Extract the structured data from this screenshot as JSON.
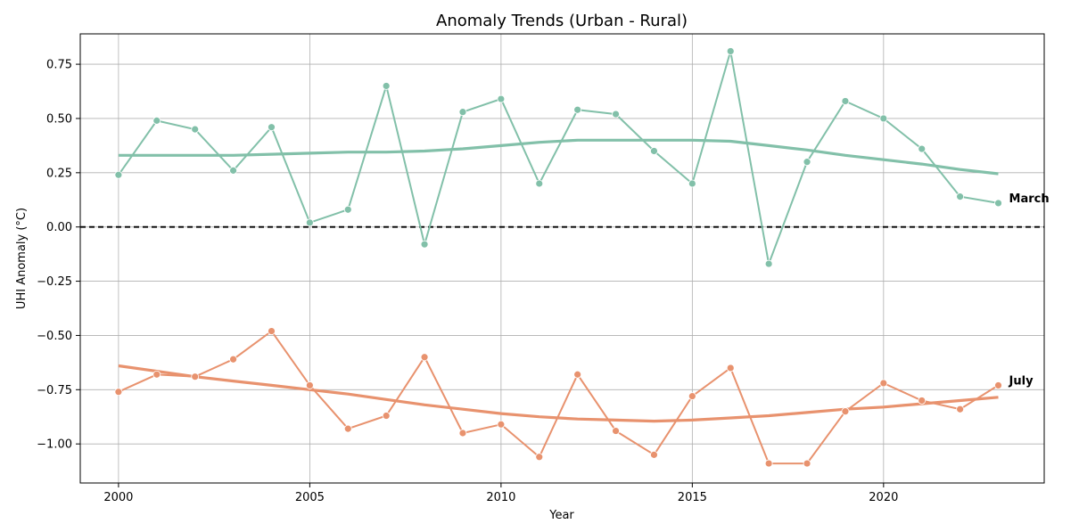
{
  "chart_data": {
    "type": "line",
    "title": "Anomaly Trends (Urban - Rural)",
    "xlabel": "Year",
    "ylabel": "UHI Anomaly (°C)",
    "xlim": [
      1999,
      2024.2
    ],
    "ylim": [
      -1.18,
      0.89
    ],
    "xticks": [
      2000,
      2005,
      2010,
      2015,
      2020
    ],
    "yticks": [
      0.75,
      0.5,
      0.25,
      0.0,
      -0.25,
      -0.5,
      -0.75,
      -1.0
    ],
    "ytick_labels": [
      "0.75",
      "0.50",
      "0.25",
      "0.00",
      "−0.25",
      "−0.50",
      "−0.75",
      "−1.00"
    ],
    "grid": true,
    "reference_line": {
      "y": 0.0,
      "style": "dashed",
      "color": "#000000"
    },
    "x": [
      2000,
      2001,
      2002,
      2003,
      2004,
      2005,
      2006,
      2007,
      2008,
      2009,
      2010,
      2011,
      2012,
      2013,
      2014,
      2015,
      2016,
      2017,
      2018,
      2019,
      2020,
      2021,
      2022,
      2023
    ],
    "series": [
      {
        "name": "March",
        "color": "#82c0a9",
        "values": [
          0.24,
          0.49,
          0.45,
          0.26,
          0.46,
          0.02,
          0.08,
          0.65,
          -0.08,
          0.53,
          0.59,
          0.2,
          0.54,
          0.52,
          0.35,
          0.2,
          0.81,
          -0.17,
          0.3,
          0.58,
          0.5,
          0.36,
          0.14,
          0.11
        ],
        "trend": [
          0.33,
          0.33,
          0.33,
          0.33,
          0.335,
          0.34,
          0.345,
          0.345,
          0.35,
          0.36,
          0.375,
          0.39,
          0.4,
          0.4,
          0.4,
          0.4,
          0.395,
          0.375,
          0.355,
          0.33,
          0.31,
          0.29,
          0.265,
          0.245
        ]
      },
      {
        "name": "July",
        "color": "#e8926e",
        "values": [
          -0.76,
          -0.68,
          -0.69,
          -0.61,
          -0.48,
          -0.73,
          -0.93,
          -0.87,
          -0.6,
          -0.95,
          -0.91,
          -1.06,
          -0.68,
          -0.94,
          -1.05,
          -0.78,
          -0.65,
          -1.09,
          -1.09,
          -0.85,
          -0.72,
          -0.8,
          -0.84,
          -0.73
        ],
        "trend": [
          -0.64,
          -0.665,
          -0.69,
          -0.71,
          -0.73,
          -0.75,
          -0.77,
          -0.795,
          -0.82,
          -0.84,
          -0.86,
          -0.875,
          -0.885,
          -0.89,
          -0.895,
          -0.89,
          -0.88,
          -0.87,
          -0.855,
          -0.84,
          -0.83,
          -0.815,
          -0.8,
          -0.785
        ]
      }
    ]
  }
}
